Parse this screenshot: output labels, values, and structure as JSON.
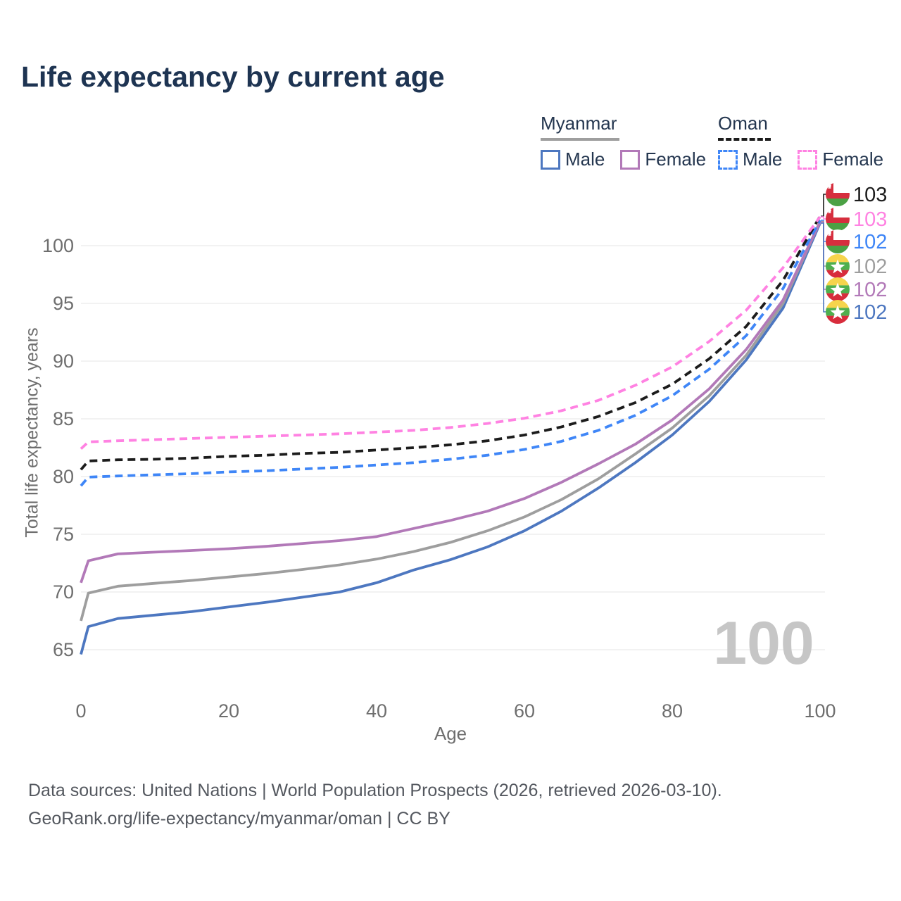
{
  "title": "Life expectancy by current age",
  "legend": {
    "groups": [
      {
        "country": "Myanmar",
        "line_style": "solid",
        "underline_color": "#9e9e9e",
        "items": [
          {
            "label": "Male",
            "color": "#4d77c0",
            "dashed": false
          },
          {
            "label": "Female",
            "color": "#b279b8",
            "dashed": false
          }
        ]
      },
      {
        "country": "Oman",
        "line_style": "dashed",
        "underline_color": "#1c1c1c",
        "items": [
          {
            "label": "Male",
            "color": "#3f86f7",
            "dashed": true
          },
          {
            "label": "Female",
            "color": "#ff82e2",
            "dashed": true
          }
        ]
      }
    ]
  },
  "axes": {
    "x_label": "Age",
    "y_label": "Total life expectancy, years"
  },
  "watermark": "100",
  "chart_data": {
    "type": "line",
    "title": "Life expectancy by current age",
    "xlabel": "Age",
    "ylabel": "Total life expectancy, years",
    "xlim": [
      0,
      100
    ],
    "ylim": [
      63.5,
      103.5
    ],
    "x_ticks": [
      0,
      20,
      40,
      60,
      80,
      100
    ],
    "y_ticks": [
      65,
      70,
      75,
      80,
      85,
      90,
      95,
      100
    ],
    "grid": "horizontal-only",
    "legend_position": "top-right",
    "ages": [
      0,
      1,
      5,
      10,
      15,
      20,
      25,
      30,
      35,
      40,
      45,
      50,
      55,
      60,
      65,
      70,
      75,
      80,
      85,
      90,
      95,
      100
    ],
    "series": [
      {
        "name": "Myanmar Male",
        "country": "Myanmar",
        "sex": "Male",
        "color": "#4d77c0",
        "dashed": false,
        "values": [
          64.6,
          67.0,
          67.7,
          68.0,
          68.3,
          68.7,
          69.1,
          69.55,
          70.0,
          70.8,
          71.9,
          72.8,
          73.9,
          75.3,
          77.0,
          79.0,
          81.2,
          83.6,
          86.5,
          90.1,
          94.6,
          101.95
        ]
      },
      {
        "name": "Myanmar Total",
        "country": "Myanmar",
        "sex": "Both",
        "color": "#9e9e9e",
        "dashed": false,
        "values": [
          67.5,
          69.9,
          70.5,
          70.75,
          71.0,
          71.3,
          71.6,
          71.95,
          72.35,
          72.85,
          73.5,
          74.3,
          75.3,
          76.5,
          78.0,
          79.8,
          81.95,
          84.2,
          87.0,
          90.5,
          95.0,
          102.1
        ]
      },
      {
        "name": "Myanmar Female",
        "country": "Myanmar",
        "sex": "Female",
        "color": "#b279b8",
        "dashed": false,
        "values": [
          70.8,
          72.7,
          73.3,
          73.45,
          73.6,
          73.75,
          73.95,
          74.2,
          74.45,
          74.8,
          75.5,
          76.2,
          77.0,
          78.1,
          79.5,
          81.1,
          82.8,
          84.9,
          87.6,
          91.0,
          95.3,
          102.05
        ]
      },
      {
        "name": "Oman Male",
        "country": "Oman",
        "sex": "Male",
        "color": "#3f86f7",
        "dashed": true,
        "values": [
          79.2,
          79.95,
          80.05,
          80.15,
          80.25,
          80.4,
          80.5,
          80.65,
          80.8,
          81.0,
          81.2,
          81.5,
          81.85,
          82.35,
          83.05,
          84.0,
          85.3,
          87.0,
          89.3,
          92.2,
          96.3,
          102.2
        ]
      },
      {
        "name": "Oman Total",
        "country": "Oman",
        "sex": "Both",
        "color": "#1c1c1c",
        "dashed": true,
        "values": [
          80.6,
          81.35,
          81.45,
          81.5,
          81.6,
          81.75,
          81.85,
          82.0,
          82.1,
          82.3,
          82.5,
          82.75,
          83.1,
          83.6,
          84.3,
          85.2,
          86.4,
          88.0,
          90.2,
          93.0,
          97.0,
          102.55
        ]
      },
      {
        "name": "Oman Female",
        "country": "Oman",
        "sex": "Female",
        "color": "#ff82e2",
        "dashed": true,
        "values": [
          82.4,
          83.0,
          83.1,
          83.2,
          83.3,
          83.4,
          83.5,
          83.6,
          83.7,
          83.85,
          84.0,
          84.25,
          84.6,
          85.05,
          85.7,
          86.6,
          87.9,
          89.5,
          91.7,
          94.4,
          98.1,
          102.5
        ]
      }
    ],
    "end_labels": [
      {
        "text": "103",
        "color": "#1c1c1c",
        "flag": "oman",
        "series": "Oman Total"
      },
      {
        "text": "103",
        "color": "#ff82e2",
        "flag": "oman",
        "series": "Oman Female"
      },
      {
        "text": "102",
        "color": "#3f86f7",
        "flag": "oman",
        "series": "Oman Male"
      },
      {
        "text": "102",
        "color": "#9e9e9e",
        "flag": "myanmar",
        "series": "Myanmar Total"
      },
      {
        "text": "102",
        "color": "#b279b8",
        "flag": "myanmar",
        "series": "Myanmar Female"
      },
      {
        "text": "102",
        "color": "#4d77c0",
        "flag": "myanmar",
        "series": "Myanmar Male"
      }
    ],
    "watermark": "100"
  },
  "footer": {
    "line1": "Data sources: United Nations | World Population Prospects (2026, retrieved 2026-03-10).",
    "line2": "GeoRank.org/life-expectancy/myanmar/oman | CC BY"
  }
}
